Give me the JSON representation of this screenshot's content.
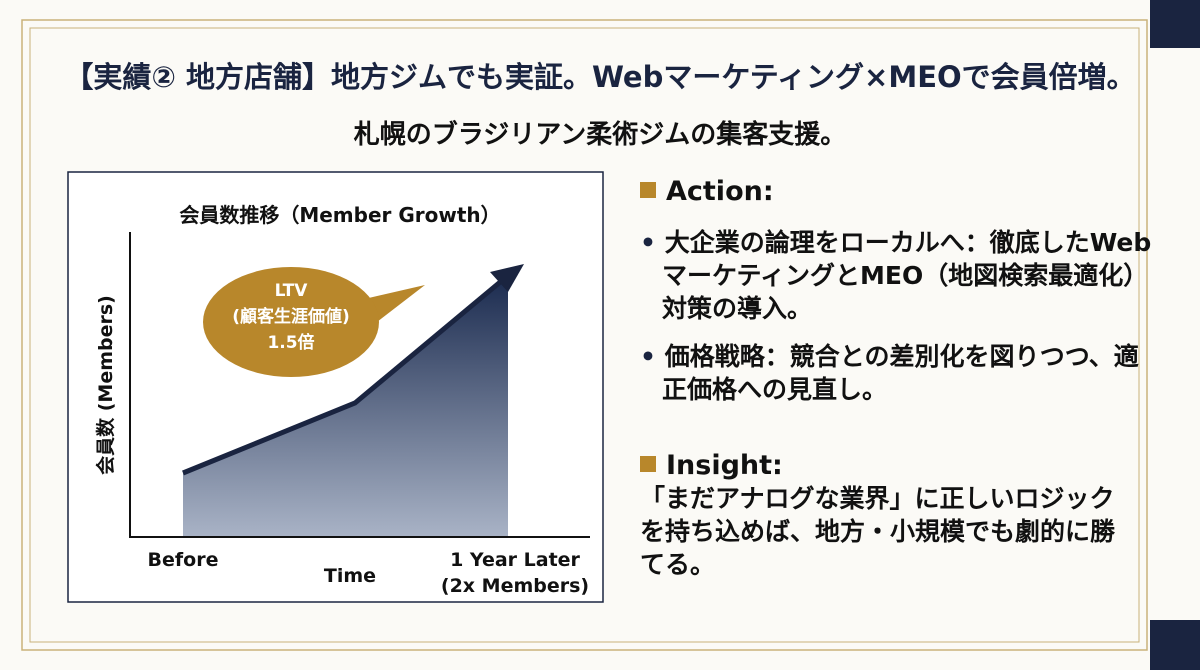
{
  "header": {
    "title": "【実績② 地方店舗】地方ジムでも実証。Webマーケティング×MEOで会員倍増。",
    "subtitle": "札幌のブラジリアン柔術ジムの集客支援。"
  },
  "chart": {
    "title": "会員数推移（Member Growth）",
    "y_label": "会員数 (Members)",
    "x_labels": [
      "Before",
      "Time",
      "1 Year Later",
      "(2x Members)"
    ],
    "callout": [
      "LTV",
      "(顧客生涯価値)",
      "1.5倍"
    ]
  },
  "sections": [
    {
      "heading": "Action:",
      "bullets": [
        "大企業の論理をローカルへ：徹底したWebマーケティングとMEO（地図検索最適化）対策の導入。",
        "価格戦略：競合との差別化を図りつつ、適正価格への見直し。"
      ]
    },
    {
      "heading": "Insight:",
      "text": "「まだアナログな業界」に正しいロジックを持ち込めば、地方・小規模でも劇的に勝てる。"
    }
  ]
}
